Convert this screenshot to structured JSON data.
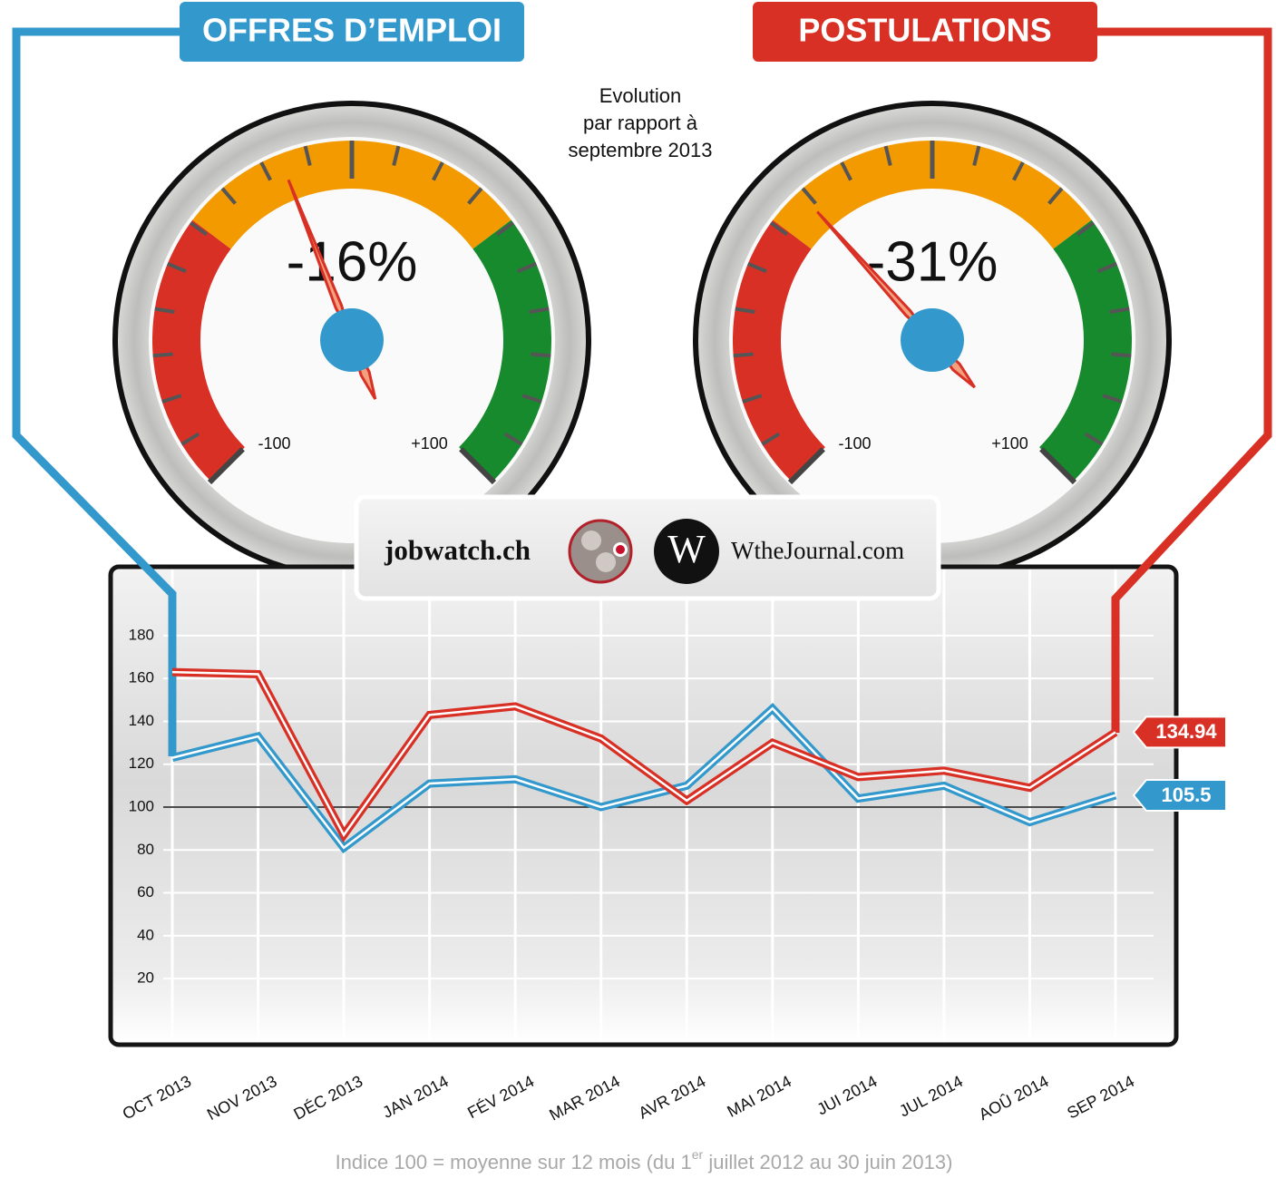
{
  "annotation": [
    "Evolution",
    "par rapport à",
    "septembre 2013"
  ],
  "logos": {
    "jobwatch": "jobwatch.ch",
    "w_letter": "W",
    "journal": "WtheJournal.com"
  },
  "footnote": [
    "Indice 100 = moyenne sur 12 mois (du 1",
    "er",
    " juillet 2012 au 30 juin 2013)"
  ],
  "chart_data": [
    {
      "type": "gauge",
      "value": -16,
      "value_label": "-16%",
      "lim": [
        -100,
        100
      ],
      "ticks": [
        {
          "value": -100,
          "label": "-100"
        },
        {
          "value": 100,
          "label": "+100"
        }
      ]
    },
    {
      "type": "gauge",
      "value": -31,
      "value_label": "-31%",
      "lim": [
        -100,
        100
      ],
      "ticks": [
        {
          "value": -100,
          "label": "-100"
        },
        {
          "value": 100,
          "label": "+100"
        }
      ]
    },
    {
      "type": "line",
      "categories": [
        "OCT 2013",
        "NOV 2013",
        "DÉC 2013",
        "JAN 2014",
        "FÉV 2014",
        "MAR 2014",
        "AVR 2014",
        "MAI 2014",
        "JUI 2014",
        "JUL 2014",
        "AOÛ 2014",
        "SEP 2014"
      ],
      "series": [
        {
          "name": "OFFRES D’EMPLOI",
          "color": "#3399cc",
          "values": [
            123,
            133,
            81,
            111,
            113,
            100,
            110,
            146,
            104,
            110,
            93,
            105.5
          ]
        },
        {
          "name": "POSTULATIONS",
          "color": "#d93025",
          "values": [
            163,
            162,
            87,
            143,
            147,
            132,
            103,
            130,
            114,
            117,
            109,
            134.94
          ]
        }
      ],
      "ylim": [
        -10,
        210
      ],
      "yticks": [
        20,
        40,
        60,
        80,
        100,
        120,
        140,
        160,
        180
      ],
      "baseline": 100,
      "grid": true
    }
  ]
}
